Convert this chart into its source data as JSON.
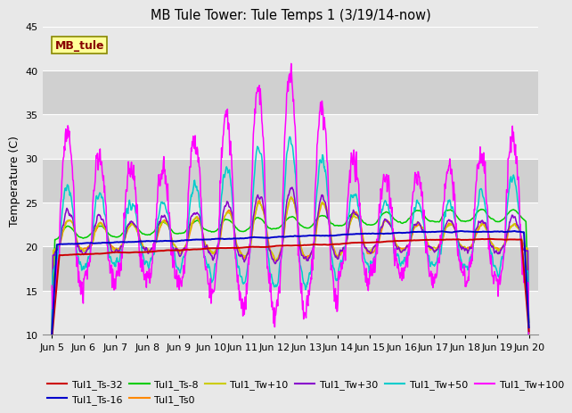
{
  "title": "MB Tule Tower: Tule Temps 1 (3/19/14-now)",
  "ylabel": "Temperature (C)",
  "ylim": [
    10,
    45
  ],
  "yticks": [
    10,
    15,
    20,
    25,
    30,
    35,
    40,
    45
  ],
  "xlim": [
    -0.3,
    15.3
  ],
  "xtick_labels": [
    "Jun 5",
    "Jun 6",
    "Jun 7",
    "Jun 8",
    "Jun 9",
    "Jun 10",
    "Jun 11",
    "Jun 12",
    "Jun 13",
    "Jun 14",
    "Jun 15",
    "Jun 16",
    "Jun 17",
    "Jun 18",
    "Jun 19",
    "Jun 20"
  ],
  "xtick_positions": [
    0,
    1,
    2,
    3,
    4,
    5,
    6,
    7,
    8,
    9,
    10,
    11,
    12,
    13,
    14,
    15
  ],
  "band_colors": [
    "#e8e8e8",
    "#d0d0d0"
  ],
  "grid_color": "#ffffff",
  "legend_items": [
    {
      "label": "Tul1_Ts-32",
      "color": "#cc0000"
    },
    {
      "label": "Tul1_Ts-16",
      "color": "#0000cc"
    },
    {
      "label": "Tul1_Ts-8",
      "color": "#00cc00"
    },
    {
      "label": "Tul1_Ts0",
      "color": "#ff8800"
    },
    {
      "label": "Tul1_Tw+10",
      "color": "#cccc00"
    },
    {
      "label": "Tul1_Tw+30",
      "color": "#8800cc"
    },
    {
      "label": "Tul1_Tw+50",
      "color": "#00cccc"
    },
    {
      "label": "Tul1_Tw+100",
      "color": "#ff00ff"
    }
  ],
  "station_label": "MB_tule",
  "station_label_color": "#880000",
  "station_box_facecolor": "#ffff99",
  "station_box_edgecolor": "#888800",
  "fig_facecolor": "#e8e8e8",
  "axes_facecolor": "#e8e8e8"
}
